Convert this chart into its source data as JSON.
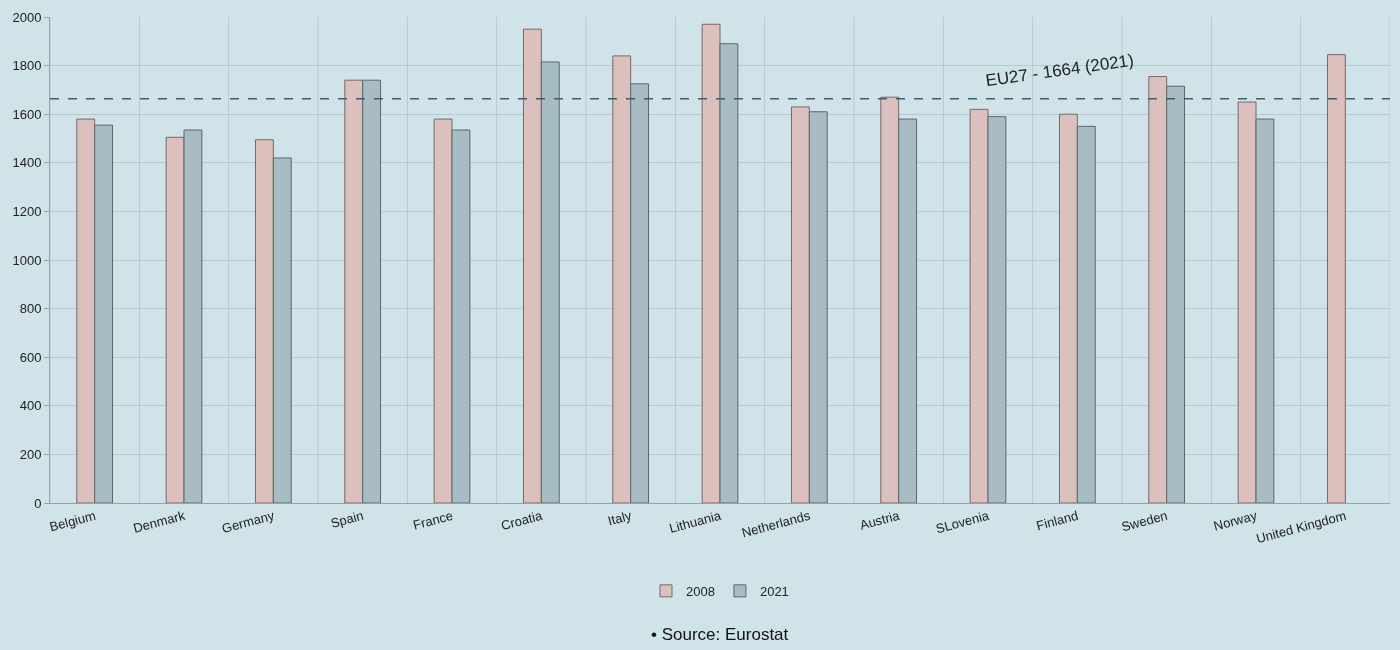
{
  "chart_data": {
    "type": "bar",
    "categories": [
      "Belgium",
      "Denmark",
      "Germany",
      "Spain",
      "France",
      "Croatia",
      "Italy",
      "Lithuania",
      "Netherlands",
      "Austria",
      "SLovenia",
      "Finland",
      "Sweden",
      "Norway",
      "United Kingdom"
    ],
    "series": [
      {
        "name": "2008",
        "color": "#dbc0bd",
        "values": [
          1580,
          1505,
          1495,
          1740,
          1580,
          1950,
          1840,
          1970,
          1630,
          1670,
          1620,
          1600,
          1755,
          1650,
          1845
        ]
      },
      {
        "name": "2021",
        "color": "#a8bcc4",
        "values": [
          1555,
          1535,
          1420,
          1740,
          1535,
          1815,
          1725,
          1890,
          1610,
          1580,
          1590,
          1550,
          1715,
          1580,
          null
        ]
      }
    ],
    "ylim": [
      0,
      2000
    ],
    "yticks": [
      0,
      200,
      400,
      600,
      800,
      1000,
      1200,
      1400,
      1600,
      1800,
      2000
    ],
    "ref_lines": [
      {
        "axis": "y",
        "value": 1664,
        "label": "EU27 - 1664 (2021)",
        "color": "#44596a",
        "line_style": "dashed"
      }
    ],
    "grid": true,
    "legend": "bottom",
    "annotations": [
      "• Source: Eurostat"
    ]
  }
}
